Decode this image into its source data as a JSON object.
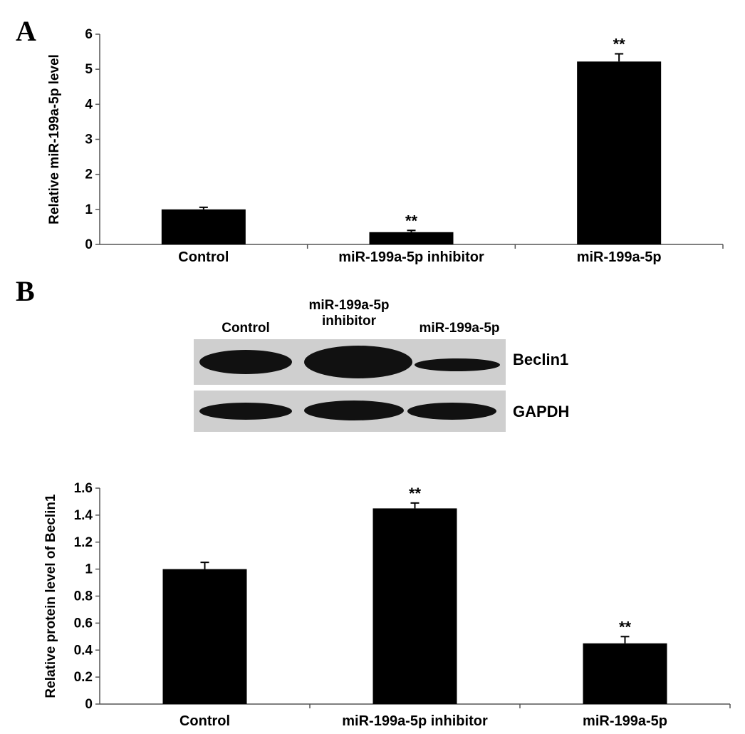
{
  "panels": {
    "a": "A",
    "b": "B"
  },
  "chart_data": [
    {
      "type": "bar",
      "categories": [
        "Control",
        "miR-199a-5p inhibitor",
        "miR-199a-5p"
      ],
      "values": [
        1.0,
        0.35,
        5.22
      ],
      "errors": [
        0.06,
        0.05,
        0.22
      ],
      "annotations": [
        "",
        "**",
        "**"
      ],
      "ylabel": "Relative miR-199a-5p level",
      "ylim": [
        0,
        6
      ],
      "yticks": [
        "0",
        "1",
        "2",
        "3",
        "4",
        "5",
        "6"
      ],
      "grid": false,
      "color": "#000000"
    },
    {
      "type": "bar",
      "categories": [
        "Control",
        "miR-199a-5p inhibitor",
        "miR-199a-5p"
      ],
      "values": [
        1.0,
        1.45,
        0.45
      ],
      "errors": [
        0.05,
        0.04,
        0.05
      ],
      "annotations": [
        "",
        "**",
        "**"
      ],
      "ylabel": "Relative protein level of Beclin1",
      "ylim": [
        0,
        1.6
      ],
      "yticks": [
        "0",
        "0.2",
        "0.4",
        "0.6",
        "0.8",
        "1",
        "1.2",
        "1.4",
        "1.6"
      ],
      "grid": false,
      "color": "#000000"
    }
  ],
  "blot": {
    "lanes": [
      "Control",
      "miR-199a-5p inhibitor",
      "miR-199a-5p"
    ],
    "lane_display": [
      [
        "Control"
      ],
      [
        "miR-199a-5p",
        "inhibitor"
      ],
      [
        "miR-199a-5p"
      ]
    ],
    "rows": [
      "Beclin1",
      "GAPDH"
    ]
  }
}
